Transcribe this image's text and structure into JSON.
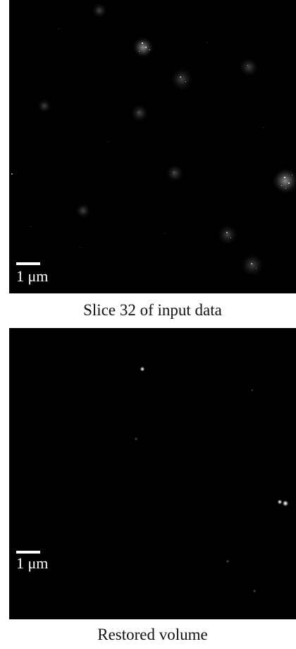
{
  "panels": [
    {
      "scale_label": "1 μm",
      "caption": "Slice 32 of input data"
    },
    {
      "scale_label": "1 μm",
      "caption": "Restored volume"
    }
  ]
}
